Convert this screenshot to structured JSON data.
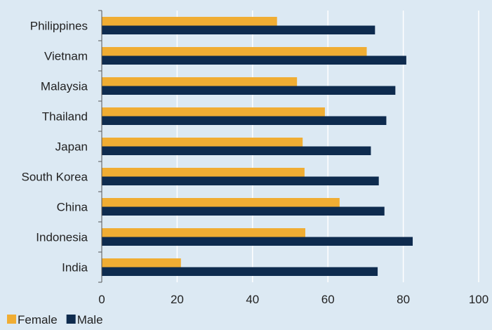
{
  "chart_data": {
    "type": "bar",
    "orientation": "horizontal",
    "categories": [
      "Philippines",
      "Vietnam",
      "Malaysia",
      "Thailand",
      "Japan",
      "South Korea",
      "China",
      "Indonesia",
      "India"
    ],
    "series": [
      {
        "name": "Female",
        "color": "#f0ad33",
        "values": [
          46.5,
          70.3,
          51.8,
          59.2,
          53.3,
          53.8,
          63.1,
          54.0,
          21.0
        ]
      },
      {
        "name": "Male",
        "color": "#0e2b4e",
        "values": [
          72.5,
          80.8,
          77.9,
          75.5,
          71.4,
          73.5,
          75.0,
          82.5,
          73.2
        ]
      }
    ],
    "xlim": [
      0,
      100
    ],
    "x_ticks": [
      "0",
      "20",
      "40",
      "60",
      "80",
      "100"
    ],
    "grid": "vertical",
    "legend_position": "bottom-left"
  },
  "colors": {
    "background": "#dce9f3",
    "gridline": "#ffffff",
    "axis": "#555555"
  }
}
